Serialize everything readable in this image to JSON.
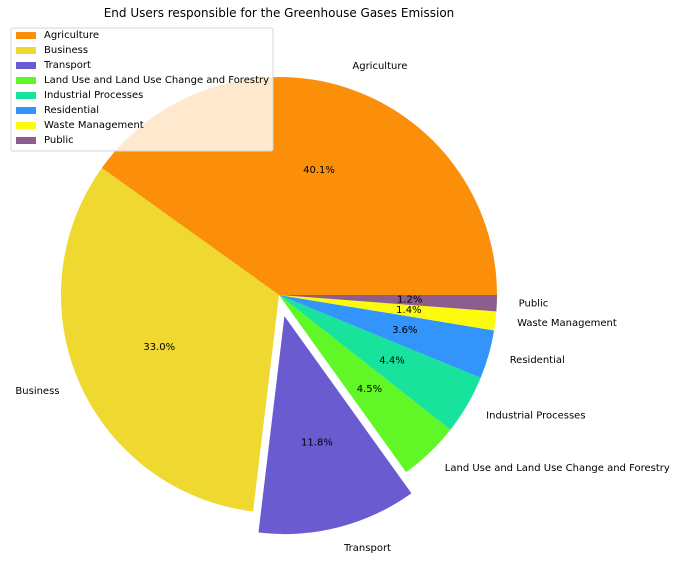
{
  "chart_data": {
    "type": "pie",
    "title": "End Users responsible for the Greenhouse Gases Emission",
    "categories": [
      "Agriculture",
      "Business",
      "Transport",
      "Land Use and Land Use Change and Forestry",
      "Industrial Processes",
      "Residential",
      "Waste Management",
      "Public"
    ],
    "values": [
      40.1,
      33.0,
      11.8,
      4.5,
      4.4,
      3.6,
      1.4,
      1.2
    ],
    "percent_labels": [
      "40.1%",
      "33.0%",
      "11.8%",
      "4.5%",
      "4.4%",
      "3.6%",
      "1.4%",
      "1.2%"
    ],
    "colors": [
      "#fb8f0a",
      "#efd82f",
      "#6b5bd0",
      "#61f726",
      "#17e39d",
      "#3394fb",
      "#fcfb0e",
      "#8d5d8d"
    ],
    "exploded": [
      "Transport"
    ],
    "start_angle_deg": 0,
    "direction": "counterclockwise",
    "legend_position": "upper-left",
    "legend": [
      "Agriculture",
      "Business",
      "Transport",
      "Land Use and Land Use Change and Forestry",
      "Industrial Processes",
      "Residential",
      "Waste Management",
      "Public"
    ]
  }
}
